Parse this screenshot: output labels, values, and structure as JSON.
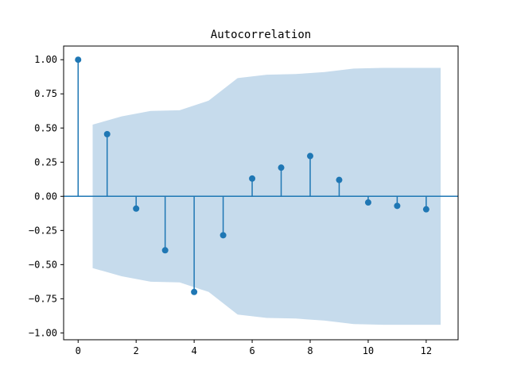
{
  "chart_data": {
    "type": "stem",
    "title": "Autocorrelation",
    "xlabel": "",
    "ylabel": "",
    "xlim": [
      -0.5,
      13.1
    ],
    "ylim": [
      -1.05,
      1.1
    ],
    "x_ticks": [
      0,
      2,
      4,
      6,
      8,
      10,
      12
    ],
    "x_tick_labels": [
      "0",
      "2",
      "4",
      "6",
      "8",
      "10",
      "12"
    ],
    "y_ticks": [
      1.0,
      0.75,
      0.5,
      0.25,
      0.0,
      -0.25,
      -0.5,
      -0.75,
      -1.0
    ],
    "y_tick_labels": [
      "1.00",
      "0.75",
      "0.50",
      "0.25",
      "0.00",
      "−0.25",
      "−0.50",
      "−0.75",
      "−1.00"
    ],
    "lags": [
      0,
      1,
      2,
      3,
      4,
      5,
      6,
      7,
      8,
      9,
      10,
      11,
      12
    ],
    "values": [
      1.0,
      0.455,
      -0.09,
      -0.395,
      -0.7,
      -0.285,
      0.13,
      0.21,
      0.295,
      0.12,
      -0.045,
      -0.07,
      -0.095
    ],
    "confidence_band": {
      "x": [
        0.5,
        1.5,
        2.5,
        3.5,
        4.5,
        5.5,
        6.5,
        7.5,
        8.5,
        9.5,
        10.5,
        11.5,
        12.5
      ],
      "upper": [
        0.525,
        0.585,
        0.625,
        0.63,
        0.7,
        0.865,
        0.89,
        0.895,
        0.91,
        0.935,
        0.94,
        0.94,
        0.94
      ],
      "lower": [
        -0.525,
        -0.585,
        -0.625,
        -0.63,
        -0.7,
        -0.865,
        -0.89,
        -0.895,
        -0.91,
        -0.935,
        -0.94,
        -0.94,
        -0.94
      ]
    },
    "zero_line": true,
    "grid": false,
    "colors": {
      "stem": "#1f77b4",
      "band": "#c6dbec",
      "axes": "#000000"
    }
  }
}
